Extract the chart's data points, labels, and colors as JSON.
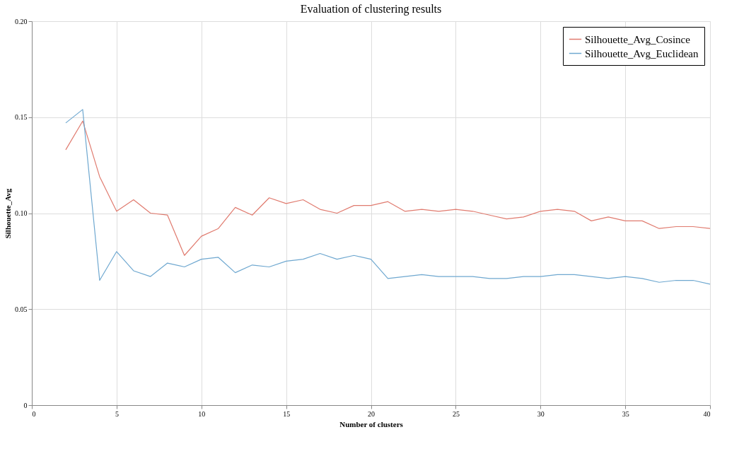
{
  "chart_data": {
    "type": "line",
    "title": "Evaluation of clustering results",
    "xlabel": "Number of clusters",
    "ylabel": "Silhouette_Avg",
    "x": [
      2,
      3,
      4,
      5,
      6,
      7,
      8,
      9,
      10,
      11,
      12,
      13,
      14,
      15,
      16,
      17,
      18,
      19,
      20,
      21,
      22,
      23,
      24,
      25,
      26,
      27,
      28,
      29,
      30,
      31,
      32,
      33,
      34,
      35,
      36,
      37,
      38,
      39,
      40
    ],
    "series": [
      {
        "name": "Silhouette_Avg_Cosince",
        "color": "#e07b6f",
        "values": [
          0.133,
          0.148,
          0.119,
          0.101,
          0.107,
          0.1,
          0.099,
          0.078,
          0.088,
          0.092,
          0.103,
          0.099,
          0.108,
          0.105,
          0.107,
          0.102,
          0.1,
          0.104,
          0.104,
          0.106,
          0.101,
          0.102,
          0.101,
          0.102,
          0.101,
          0.099,
          0.097,
          0.098,
          0.101,
          0.102,
          0.101,
          0.096,
          0.098,
          0.096,
          0.096,
          0.092,
          0.093,
          0.093,
          0.092
        ]
      },
      {
        "name": "Silhouette_Avg_Euclidean",
        "color": "#6fa8d0",
        "values": [
          0.147,
          0.154,
          0.065,
          0.08,
          0.07,
          0.067,
          0.074,
          0.072,
          0.076,
          0.077,
          0.069,
          0.073,
          0.072,
          0.075,
          0.076,
          0.079,
          0.076,
          0.078,
          0.076,
          0.066,
          0.067,
          0.068,
          0.067,
          0.067,
          0.067,
          0.066,
          0.066,
          0.067,
          0.067,
          0.068,
          0.068,
          0.067,
          0.066,
          0.067,
          0.066,
          0.064,
          0.065,
          0.065,
          0.063
        ]
      }
    ],
    "xlim": [
      0,
      40
    ],
    "xticks": [
      0,
      5,
      10,
      15,
      20,
      25,
      30,
      35,
      40
    ],
    "ylim": [
      0,
      0.2
    ],
    "yticks": [
      0,
      0.05,
      {
        "value": 0.1,
        "label": "0.10"
      },
      0.15,
      {
        "value": 0.2,
        "label": "0.20"
      }
    ],
    "grid": true,
    "legend": "top right",
    "marker": "none",
    "line_style": "solid"
  }
}
